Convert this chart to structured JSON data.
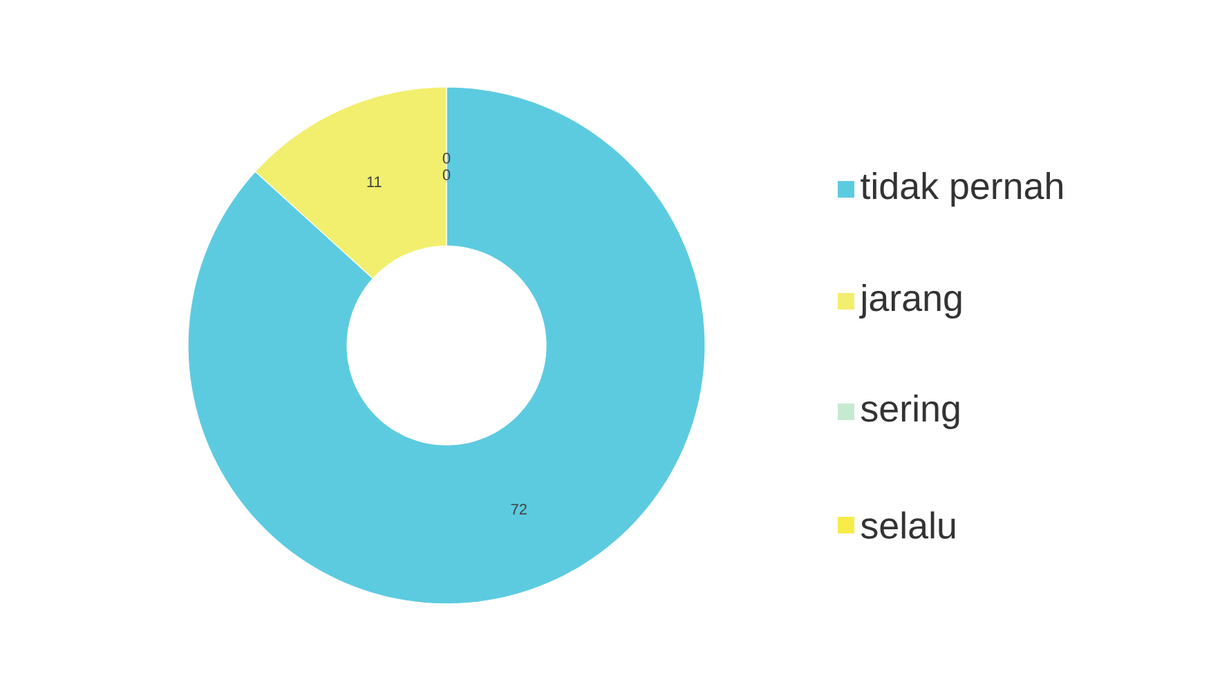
{
  "chart_data": {
    "type": "donut",
    "categories": [
      "tidak pernah",
      "jarang",
      "sering",
      "selalu"
    ],
    "values": [
      72,
      11,
      0,
      0
    ],
    "value_labels": [
      "72",
      "11",
      "0",
      "0"
    ],
    "colors": [
      "#5ccbe0",
      "#f2ef6e",
      "#c6ead0",
      "#f7ec4a"
    ],
    "legend": "right"
  }
}
